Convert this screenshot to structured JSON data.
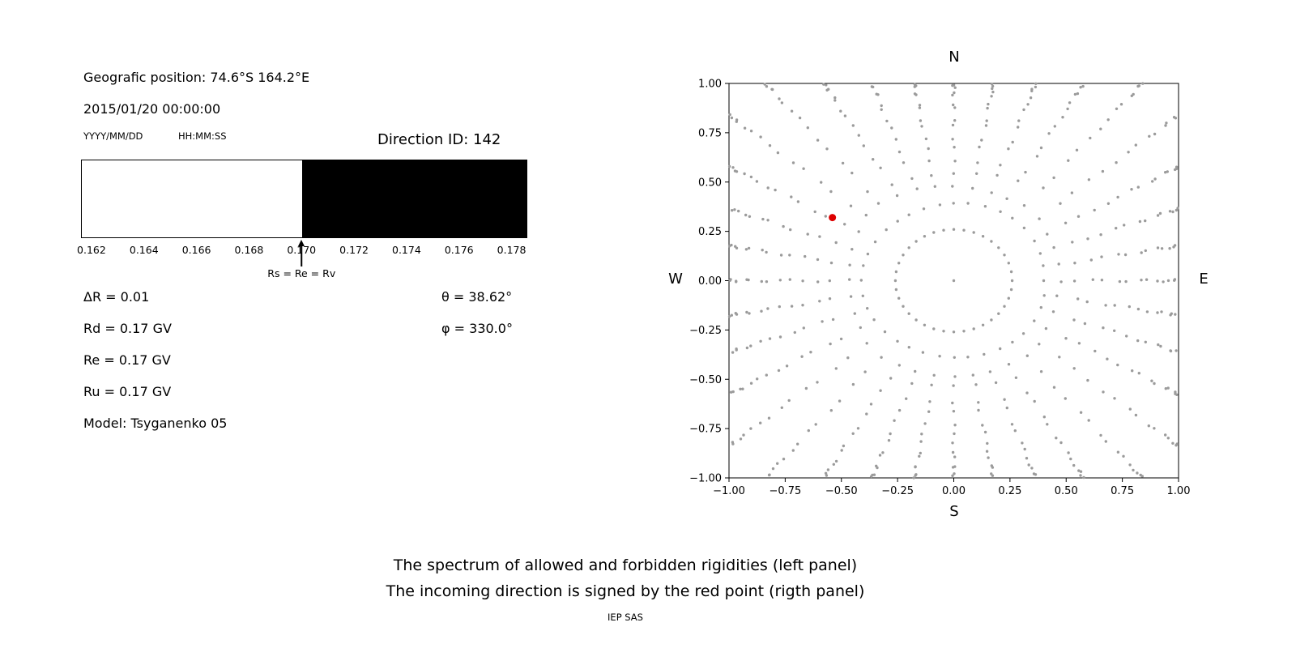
{
  "header": {
    "geographic_position": "Geografic position: 74.6°S 164.2°E",
    "datetime": "2015/01/20 00:00:00",
    "date_format": "YYYY/MM/DD",
    "time_format": "HH:MM:SS",
    "direction_id": "Direction ID: 142"
  },
  "params": {
    "left": [
      "ΔR = 0.01",
      "Rd = 0.17 GV",
      "Re = 0.17 GV",
      "Ru = 0.17 GV",
      "Model: Tsyganenko 05"
    ],
    "right": [
      "θ = 38.62°",
      "φ = 330.0°"
    ]
  },
  "captions": {
    "line1": "The spectrum of allowed and forbidden rigidities (left panel)",
    "line2": "The incoming direction is signed by the red point (rigth panel)",
    "credit": "IEP SAS"
  },
  "chart_data": [
    {
      "id": "rigidity-spectrum",
      "type": "area",
      "title": "",
      "xlabel": "",
      "ylabel": "",
      "x_range": [
        0.1616,
        0.1786
      ],
      "x_ticks": [
        0.162,
        0.164,
        0.166,
        0.168,
        0.17,
        0.172,
        0.174,
        0.176,
        0.178
      ],
      "regions": [
        {
          "label": "allowed",
          "from": 0.1616,
          "to": 0.17,
          "color": "#ffffff"
        },
        {
          "label": "forbidden",
          "from": 0.17,
          "to": 0.1786,
          "color": "#000000"
        }
      ],
      "annotation": {
        "text": "Rs = Re = Rv",
        "x": 0.17
      }
    },
    {
      "id": "incoming-direction",
      "type": "scatter",
      "title": "",
      "xlim": [
        -1.0,
        1.0
      ],
      "ylim": [
        -1.0,
        1.0
      ],
      "x_ticks": [
        -1.0,
        -0.75,
        -0.5,
        -0.25,
        0.0,
        0.25,
        0.5,
        0.75,
        1.0
      ],
      "y_ticks": [
        -1.0,
        -0.75,
        -0.5,
        -0.25,
        0.0,
        0.25,
        0.5,
        0.75,
        1.0
      ],
      "grid": false,
      "compass": {
        "top": "N",
        "bottom": "S",
        "left": "W",
        "right": "E"
      },
      "red_point": {
        "x": -0.54,
        "y": 0.32,
        "color": "#dd0000"
      },
      "gray_dots": {
        "color": "#9b9b9b",
        "num_spokes": 36,
        "ring_radius": 0.26,
        "center_dot": true,
        "trail_start_radius": 0.4,
        "cluster_exponent": 1.8
      }
    }
  ]
}
